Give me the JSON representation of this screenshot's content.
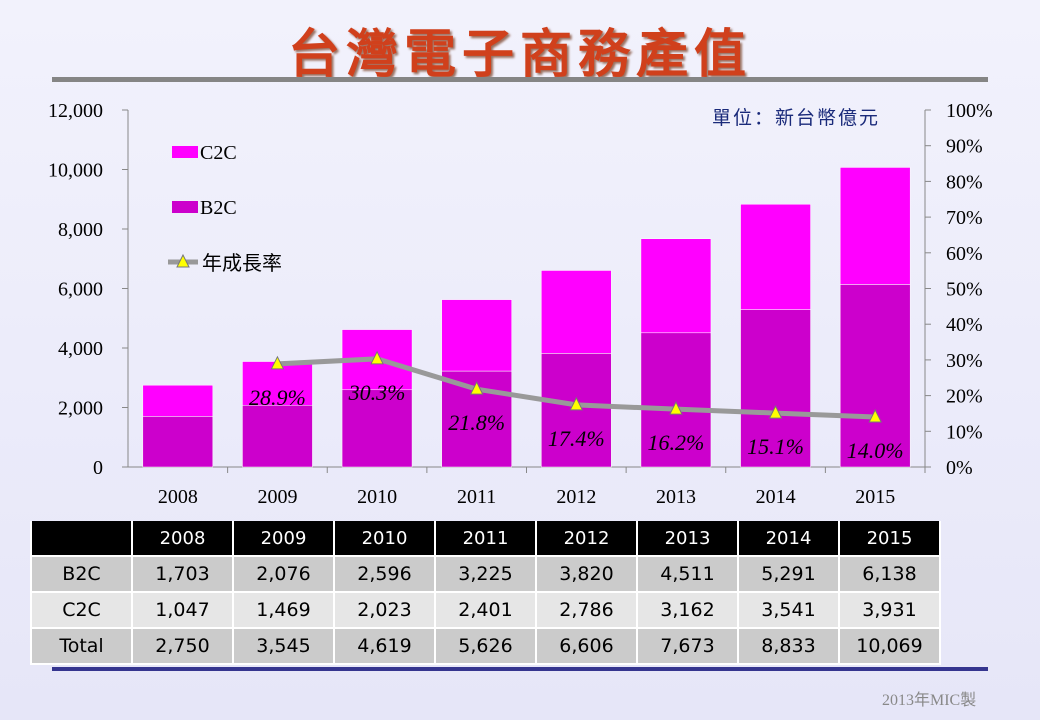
{
  "title": "台灣電子商務產值",
  "unit": "單位：新台幣億元",
  "credit": "2013年MIC製",
  "colors": {
    "b2c": "#cc00cc",
    "c2c": "#ff00ff",
    "line": "#999999",
    "marker": "#ffff00",
    "title": "#d0401c"
  },
  "chart_data": {
    "type": "bar",
    "stacked": true,
    "categories": [
      "2008",
      "2009",
      "2010",
      "2011",
      "2012",
      "2013",
      "2014",
      "2015"
    ],
    "series": [
      {
        "name": "B2C",
        "values": [
          1703,
          2076,
          2596,
          3225,
          3820,
          4511,
          5291,
          6138
        ]
      },
      {
        "name": "C2C",
        "values": [
          1047,
          1469,
          2023,
          2401,
          2786,
          3162,
          3541,
          3931
        ]
      },
      {
        "name": "年成長率",
        "type": "line",
        "axis": "right",
        "values": [
          null,
          28.9,
          30.3,
          21.8,
          17.4,
          16.2,
          15.1,
          14.0
        ],
        "labels": [
          "",
          "28.9%",
          "30.3%",
          "21.8%",
          "17.4%",
          "16.2%",
          "15.1%",
          "14.0%"
        ]
      }
    ],
    "ylim": [
      0,
      12000
    ],
    "yticks": [
      "0",
      "2,000",
      "4,000",
      "6,000",
      "8,000",
      "10,000",
      "12,000"
    ],
    "y2lim": [
      0,
      100
    ],
    "y2ticks": [
      "0%",
      "10%",
      "20%",
      "30%",
      "40%",
      "50%",
      "60%",
      "70%",
      "80%",
      "90%",
      "100%"
    ],
    "legend": [
      "C2C",
      "B2C",
      "年成長率"
    ],
    "legend_position": "top-left",
    "grid": false
  },
  "table": {
    "headers": [
      "",
      "2008",
      "2009",
      "2010",
      "2011",
      "2012",
      "2013",
      "2014",
      "2015"
    ],
    "rows": [
      {
        "label": "B2C",
        "values": [
          "1,703",
          "2,076",
          "2,596",
          "3,225",
          "3,820",
          "4,511",
          "5,291",
          "6,138"
        ]
      },
      {
        "label": "C2C",
        "values": [
          "1,047",
          "1,469",
          "2,023",
          "2,401",
          "2,786",
          "3,162",
          "3,541",
          "3,931"
        ]
      },
      {
        "label": "Total",
        "values": [
          "2,750",
          "3,545",
          "4,619",
          "5,626",
          "6,606",
          "7,673",
          "8,833",
          "10,069"
        ]
      }
    ]
  }
}
